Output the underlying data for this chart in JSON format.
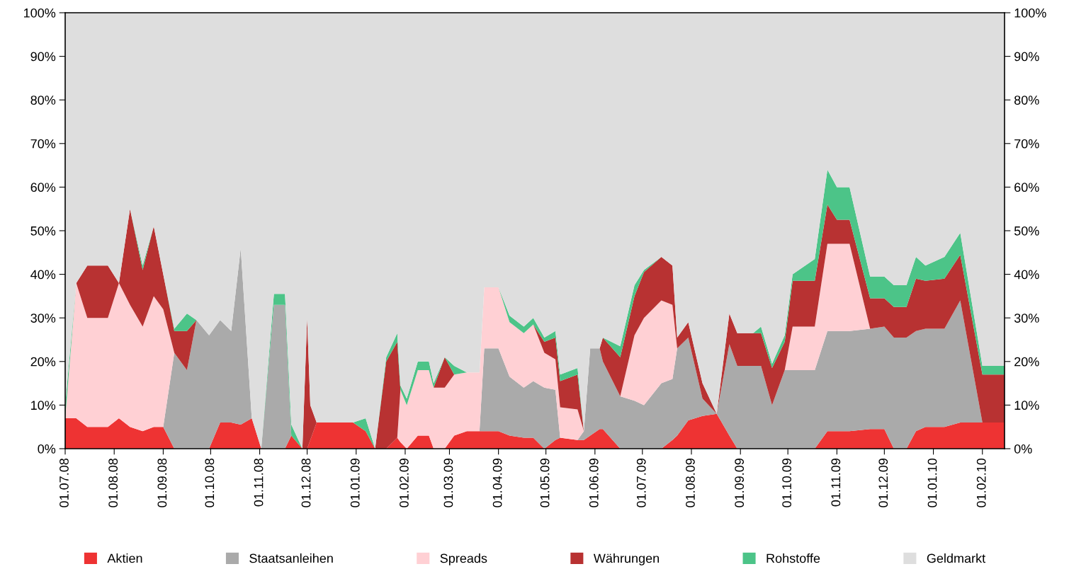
{
  "chart_data": {
    "type": "area",
    "stacked": true,
    "legend": "bottom",
    "grid": false,
    "x": [
      "2008-07-01",
      "2008-07-08",
      "2008-07-15",
      "2008-07-28",
      "2008-08-04",
      "2008-08-11",
      "2008-08-19",
      "2008-08-26",
      "2008-09-01",
      "2008-09-08",
      "2008-09-16",
      "2008-09-22",
      "2008-09-30",
      "2008-10-07",
      "2008-10-14",
      "2008-10-20",
      "2008-10-27",
      "2008-11-02",
      "2008-11-10",
      "2008-11-17",
      "2008-11-21",
      "2008-11-28",
      "2008-12-01",
      "2008-12-03",
      "2008-12-07",
      "2008-12-30",
      "2009-01-07",
      "2009-01-13",
      "2009-01-20",
      "2009-01-27",
      "2009-01-29",
      "2009-02-02",
      "2009-02-09",
      "2009-02-16",
      "2009-02-19",
      "2009-02-26",
      "2009-03-04",
      "2009-03-12",
      "2009-03-20",
      "2009-03-23",
      "2009-04-01",
      "2009-04-08",
      "2009-04-17",
      "2009-04-23",
      "2009-04-30",
      "2009-05-07",
      "2009-05-10",
      "2009-05-21",
      "2009-05-25",
      "2009-05-29",
      "2009-06-04",
      "2009-06-06",
      "2009-06-17",
      "2009-06-26",
      "2009-07-02",
      "2009-07-13",
      "2009-07-20",
      "2009-07-23",
      "2009-07-30",
      "2009-08-08",
      "2009-08-17",
      "2009-08-25",
      "2009-08-30",
      "2009-09-09",
      "2009-09-14",
      "2009-09-21",
      "2009-09-29",
      "2009-10-04",
      "2009-10-18",
      "2009-10-26",
      "2009-11-01",
      "2009-11-09",
      "2009-11-22",
      "2009-12-01",
      "2009-12-07",
      "2009-12-15",
      "2009-12-21",
      "2009-12-27",
      "2010-01-08",
      "2010-01-18",
      "2010-02-01",
      "2010-02-15"
    ],
    "series": [
      {
        "name": "Aktien",
        "color": "#ee3333",
        "values": [
          7,
          7,
          5,
          5,
          7,
          5,
          4,
          5,
          5,
          0,
          0,
          0,
          0,
          6,
          6,
          5.5,
          7,
          0,
          0,
          0,
          3,
          0,
          0,
          2,
          6,
          6,
          4,
          0,
          0,
          2.5,
          1.5,
          0,
          3,
          3,
          0,
          0,
          3,
          4,
          4,
          4,
          4,
          3,
          2.5,
          2.5,
          0,
          2,
          2.5,
          2,
          2,
          3,
          4.5,
          4.5,
          0,
          0,
          0,
          0,
          2,
          3,
          6.5,
          7.5,
          8,
          3,
          0,
          0,
          0,
          0,
          0,
          0,
          0,
          4,
          4,
          4,
          4.5,
          4.5,
          0,
          0,
          4,
          5,
          5,
          6,
          6,
          6
        ]
      },
      {
        "name": "Staatsanleihen",
        "color": "#aaaaaa",
        "values": [
          0,
          0,
          0,
          0,
          0,
          0,
          0,
          0,
          0,
          22,
          18,
          29.5,
          26,
          23.5,
          21,
          40.5,
          0,
          0,
          33,
          33,
          0,
          0,
          0,
          0,
          0,
          0,
          0,
          0,
          0,
          0,
          0,
          0,
          0,
          0,
          0,
          0,
          0,
          0,
          0,
          19,
          19,
          13.5,
          11.5,
          13,
          14,
          11.5,
          0,
          0,
          2,
          20,
          18.5,
          15.5,
          12,
          11,
          10,
          15,
          14,
          20,
          19,
          4,
          0,
          21,
          19,
          19,
          19,
          10,
          18,
          18,
          18,
          23,
          23,
          23,
          23,
          23.5,
          25.5,
          25.5,
          23,
          22.5,
          22.5,
          28,
          0,
          0
        ]
      },
      {
        "name": "Spreads",
        "color": "#ffd0d4",
        "values": [
          0,
          31,
          25,
          25,
          31,
          28,
          24,
          30,
          27,
          0,
          0,
          0,
          0,
          0,
          0,
          0,
          0,
          0,
          0,
          0,
          0,
          0,
          0,
          0,
          0,
          0,
          0,
          0,
          0,
          0,
          12,
          10,
          15,
          15,
          14,
          14,
          14,
          13.5,
          13.5,
          14,
          14,
          12.5,
          12.5,
          13,
          8,
          7,
          7,
          7,
          0,
          0,
          0,
          0,
          0,
          15,
          20,
          19,
          17,
          0,
          0,
          0,
          0,
          0,
          0,
          0,
          0,
          0,
          0,
          10,
          10,
          20,
          20,
          20,
          0,
          0,
          0,
          0,
          0,
          0,
          0,
          0,
          0,
          0
        ]
      },
      {
        "name": "Währungen",
        "color": "#b83232",
        "values": [
          0,
          0,
          12,
          12,
          0,
          22,
          13,
          16,
          8,
          5,
          9,
          0,
          0,
          0,
          0,
          0,
          0,
          0,
          0,
          0,
          0,
          0,
          30,
          8,
          0,
          0,
          0,
          0,
          20,
          22,
          0,
          0,
          0,
          0,
          0,
          7,
          0,
          0,
          0,
          0,
          0,
          0,
          0,
          0,
          2.5,
          5,
          6,
          8,
          0,
          0,
          0,
          5.5,
          9,
          9,
          10.5,
          10,
          9,
          2.5,
          3.5,
          3.5,
          0,
          7,
          7.5,
          7.5,
          7.5,
          8.5,
          6.5,
          10.5,
          10.5,
          9,
          5.5,
          5.5,
          7,
          6.5,
          7,
          7,
          12,
          11,
          11.5,
          10.5,
          11,
          11
        ]
      },
      {
        "name": "Rohstoffe",
        "color": "#4cc488",
        "values": [
          3,
          0,
          0,
          0,
          0,
          0,
          1,
          0,
          0,
          0.5,
          4,
          0,
          0,
          0,
          0,
          0,
          0,
          0,
          2.5,
          2.5,
          2.5,
          0,
          0,
          0,
          0,
          0,
          3,
          0,
          1,
          2,
          1,
          1.5,
          2,
          2,
          1,
          0,
          2,
          0,
          0,
          0,
          0,
          1.5,
          1.5,
          1.5,
          1,
          1.5,
          1.5,
          1.5,
          0,
          0,
          0,
          0,
          2.5,
          2.5,
          0.5,
          0,
          0,
          0,
          0,
          0,
          0,
          0,
          0,
          0,
          1.5,
          1,
          1.5,
          1.5,
          5,
          8,
          7.5,
          7.5,
          5,
          5,
          5,
          5,
          5,
          3.5,
          5,
          5,
          2,
          2
        ]
      },
      {
        "name": "Geldmarkt",
        "color": "#dedede",
        "values": [
          90,
          62,
          58,
          58,
          62,
          45,
          58,
          49,
          60,
          72.5,
          69,
          70.5,
          74,
          70.5,
          73,
          54,
          93,
          100,
          64.5,
          64.5,
          94.5,
          100,
          70,
          90,
          94,
          94,
          93,
          100,
          79,
          73.5,
          85.5,
          88.5,
          80,
          80,
          85,
          79,
          81,
          82.5,
          82.5,
          63,
          63,
          69.5,
          72,
          70,
          74.5,
          73,
          83,
          81.5,
          96,
          77,
          77,
          74.5,
          76.5,
          62.5,
          59,
          56,
          58,
          74.5,
          71,
          85,
          92,
          69,
          73.5,
          73.5,
          72,
          80.5,
          74,
          60,
          56.5,
          36,
          40,
          40,
          60.5,
          60.5,
          62.5,
          62.5,
          56,
          58,
          56,
          50.5,
          81,
          81
        ]
      }
    ],
    "xlim": [
      "2008-07-01",
      "2010-02-15"
    ],
    "xticks": [
      {
        "value": "2008-07-01",
        "label": "01.07.08"
      },
      {
        "value": "2008-08-01",
        "label": "01.08.08"
      },
      {
        "value": "2008-09-01",
        "label": "01.09.08"
      },
      {
        "value": "2008-10-01",
        "label": "01.10.08"
      },
      {
        "value": "2008-11-01",
        "label": "01.11.08"
      },
      {
        "value": "2008-12-01",
        "label": "01.12.08"
      },
      {
        "value": "2009-01-01",
        "label": "01.01.09"
      },
      {
        "value": "2009-02-01",
        "label": "01.02.09"
      },
      {
        "value": "2009-03-01",
        "label": "01.03.09"
      },
      {
        "value": "2009-04-01",
        "label": "01.04.09"
      },
      {
        "value": "2009-05-01",
        "label": "01.05.09"
      },
      {
        "value": "2009-06-01",
        "label": "01.06.09"
      },
      {
        "value": "2009-07-01",
        "label": "01.07.09"
      },
      {
        "value": "2009-08-01",
        "label": "01.08.09"
      },
      {
        "value": "2009-09-01",
        "label": "01.09.09"
      },
      {
        "value": "2009-10-01",
        "label": "01.10.09"
      },
      {
        "value": "2009-11-01",
        "label": "01.11.09"
      },
      {
        "value": "2009-12-01",
        "label": "01.12.09"
      },
      {
        "value": "2010-01-01",
        "label": "01.01.10"
      },
      {
        "value": "2010-02-01",
        "label": "01.02.10"
      }
    ],
    "ylim": [
      0,
      100
    ],
    "yticks": [
      {
        "value": 0,
        "label": "0%"
      },
      {
        "value": 10,
        "label": "10%"
      },
      {
        "value": 20,
        "label": "20%"
      },
      {
        "value": 30,
        "label": "30%"
      },
      {
        "value": 40,
        "label": "40%"
      },
      {
        "value": 50,
        "label": "50%"
      },
      {
        "value": 60,
        "label": "60%"
      },
      {
        "value": 70,
        "label": "70%"
      },
      {
        "value": 80,
        "label": "80%"
      },
      {
        "value": 90,
        "label": "90%"
      },
      {
        "value": 100,
        "label": "100%"
      }
    ],
    "y2lim": [
      0,
      100
    ],
    "y2ticks": [
      {
        "value": 0,
        "label": "0%"
      },
      {
        "value": 10,
        "label": "10%"
      },
      {
        "value": 20,
        "label": "20%"
      },
      {
        "value": 30,
        "label": "30%"
      },
      {
        "value": 40,
        "label": "40%"
      },
      {
        "value": 50,
        "label": "50%"
      },
      {
        "value": 60,
        "label": "60%"
      },
      {
        "value": 70,
        "label": "70%"
      },
      {
        "value": 80,
        "label": "80%"
      },
      {
        "value": 90,
        "label": "90%"
      },
      {
        "value": 100,
        "label": "100%"
      }
    ]
  }
}
